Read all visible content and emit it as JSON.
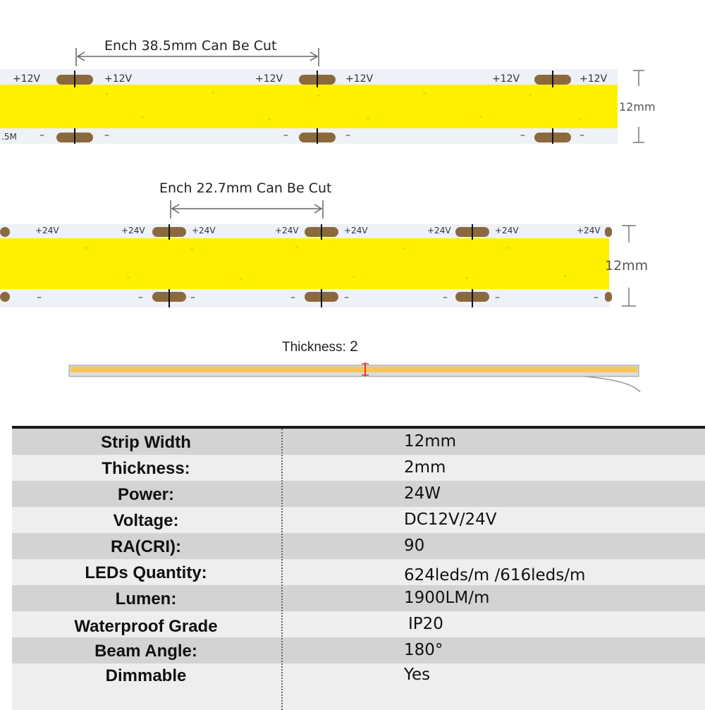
{
  "strip_12v": {
    "cut_label": "Ench 38.5mm Can Be Cut",
    "width_label": "12mm",
    "plus_label": "+12V",
    "minus_label": "–",
    "edge_text": ".5M"
  },
  "strip_24v": {
    "cut_label": "Ench 22.7mm Can Be Cut",
    "width_label": "12mm",
    "plus_label": "+24V",
    "minus_label": "–"
  },
  "thickness_view": {
    "label": "Thickness:",
    "value": "2"
  },
  "colors": {
    "strip_yellow": "#fff000",
    "pcb_white": "#eef1f5",
    "copper_pad": "#8a6a3c",
    "cut_mark": "#e03a2a"
  },
  "specs": [
    {
      "label": "Strip Width",
      "value": "12mm"
    },
    {
      "label": "Thickness:",
      "value": "2mm"
    },
    {
      "label": "Power:",
      "value": "24W"
    },
    {
      "label": "Voltage:",
      "value": "DC12V/24V"
    },
    {
      "label": "RA(CRI):",
      "value": "90"
    },
    {
      "label": "LEDs Quantity:",
      "value": "624leds/m /616leds/m"
    },
    {
      "label": "Lumen:",
      "value": "1900LM/m"
    },
    {
      "label": "Waterproof Grade",
      "value": "IP20"
    },
    {
      "label": "Beam Angle:",
      "value": "180°"
    },
    {
      "label": "Dimmable",
      "value": "Yes"
    }
  ]
}
